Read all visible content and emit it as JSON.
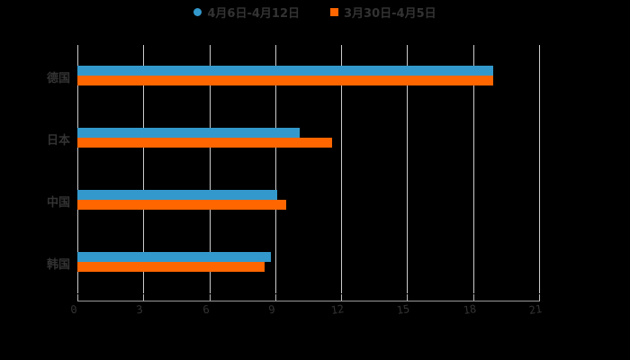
{
  "chart_data": {
    "type": "bar",
    "orientation": "horizontal",
    "title": "",
    "xlabel": "",
    "ylabel": "",
    "categories": [
      "德国",
      "日本",
      "中国",
      "韩国"
    ],
    "series": [
      {
        "name": "4月6日-4月12日",
        "color": "#3399cc",
        "values": [
          18.9,
          10.1,
          9.1,
          8.8
        ]
      },
      {
        "name": "3月30日-4月5日",
        "color": "#ff6600",
        "values": [
          18.9,
          11.6,
          9.5,
          8.5
        ]
      }
    ],
    "xlim": [
      0,
      21
    ],
    "xticks": [
      "0",
      "3",
      "6",
      "9",
      "12",
      "15",
      "18",
      "21"
    ],
    "grid": "vertical",
    "legend_position": "top"
  },
  "legend": [
    {
      "label": "4月6日-4月12日",
      "color": "#3399cc",
      "shape": "circle"
    },
    {
      "label": "3月30日-4月5日",
      "color": "#ff6600",
      "shape": "square"
    }
  ]
}
